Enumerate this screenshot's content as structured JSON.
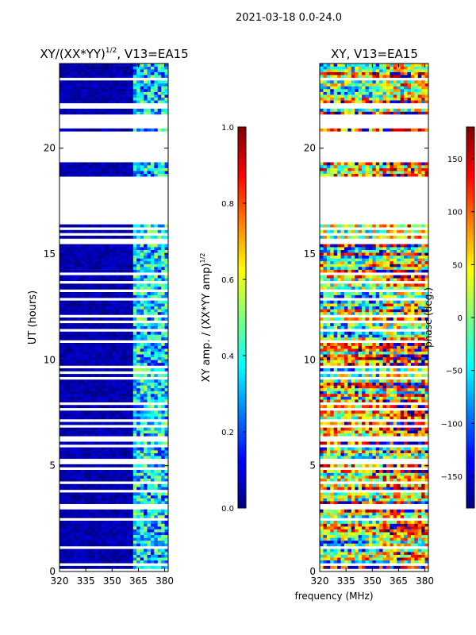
{
  "chart_data": {
    "type": "heatmap",
    "suptitle": "2021-03-18 0.0-24.0",
    "shared_xlabel": "frequency (MHz)",
    "panels": [
      {
        "id": "amp",
        "title_main": "XY/(XX*YY)",
        "title_sup": "1/2",
        "title_suffix": ", V13=EA15",
        "ylabel": "UT (hours)",
        "xlim": [
          320,
          382
        ],
        "ylim": [
          0,
          24
        ],
        "xticks": [
          "320",
          "335",
          "350",
          "365",
          "380"
        ],
        "yticks": [
          "0",
          "5",
          "10",
          "15",
          "20"
        ],
        "colorbar": {
          "label_main": "XY amp. / (XX*YY amp)",
          "label_sup": "1/2",
          "range": [
            0.0,
            1.0
          ],
          "ticks": [
            "0.0",
            "0.2",
            "0.4",
            "0.6",
            "0.8",
            "1.0"
          ]
        }
      },
      {
        "id": "phase",
        "title_main": "XY, V13=EA15",
        "ylabel": "",
        "xlim": [
          320,
          382
        ],
        "ylim": [
          0,
          24
        ],
        "xticks": [
          "320",
          "335",
          "350",
          "365",
          "380"
        ],
        "yticks": [
          "0",
          "5",
          "10",
          "15",
          "20"
        ],
        "colorbar": {
          "label_main": "phase (deg.)",
          "range": [
            -180,
            180
          ],
          "ticks": [
            "-150",
            "-100",
            "-50",
            "0",
            "50",
            "100",
            "150"
          ]
        }
      }
    ],
    "data_gaps_ut_hours": [
      [
        16.55,
        18.7
      ],
      [
        19.4,
        20.6
      ],
      [
        20.8,
        20.85
      ],
      [
        21.0,
        21.6
      ]
    ],
    "dominant_amp_band_mhz": [
      363,
      381
    ]
  }
}
